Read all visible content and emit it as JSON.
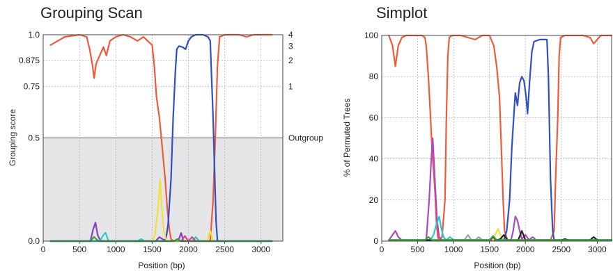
{
  "chart_data": [
    {
      "type": "line",
      "title": "Grouping Scan",
      "xlabel": "Position (bp)",
      "ylabel": "Grouping score",
      "xlim": [
        0,
        3300
      ],
      "ylim": [
        0,
        1.0
      ],
      "y_tick_values": [
        0.0,
        0.5,
        0.75,
        0.875,
        1.0
      ],
      "y_tick_labels": [
        "0.0",
        "0.5",
        "0.75",
        "0.875",
        "1.0"
      ],
      "x_ticks": [
        0,
        500,
        1000,
        1500,
        2000,
        2500,
        3000
      ],
      "right_labels": [
        {
          "text": "4",
          "y": 1.0
        },
        {
          "text": "3",
          "y": 0.945
        },
        {
          "text": "2",
          "y": 0.875
        },
        {
          "text": "1",
          "y": 0.75
        },
        {
          "text": "Outgroup",
          "y": 0.5
        }
      ],
      "shaded_below": 0.5,
      "series": [
        {
          "color": "#f05a3a",
          "points": [
            [
              100,
              0.95
            ],
            [
              200,
              0.97
            ],
            [
              300,
              0.99
            ],
            [
              400,
              0.995
            ],
            [
              500,
              1.0
            ],
            [
              600,
              0.99
            ],
            [
              640,
              0.93
            ],
            [
              680,
              0.85
            ],
            [
              700,
              0.79
            ],
            [
              730,
              0.86
            ],
            [
              780,
              0.9
            ],
            [
              830,
              0.94
            ],
            [
              870,
              0.9
            ],
            [
              920,
              0.97
            ],
            [
              1000,
              0.99
            ],
            [
              1100,
              1.0
            ],
            [
              1200,
              0.99
            ],
            [
              1300,
              0.97
            ],
            [
              1380,
              0.99
            ],
            [
              1440,
              0.97
            ],
            [
              1500,
              0.95
            ],
            [
              1530,
              0.85
            ],
            [
              1560,
              0.7
            ],
            [
              1600,
              0.6
            ],
            [
              1640,
              0.45
            ],
            [
              1680,
              0.3
            ],
            [
              1710,
              0.15
            ],
            [
              1740,
              0.05
            ],
            [
              1760,
              0.01
            ],
            [
              1800,
              0.0
            ],
            [
              2300,
              0.0
            ],
            [
              2340,
              0.2
            ],
            [
              2370,
              0.5
            ],
            [
              2400,
              0.85
            ],
            [
              2430,
              0.99
            ],
            [
              2500,
              1.0
            ],
            [
              2700,
              1.0
            ],
            [
              2800,
              0.99
            ],
            [
              2900,
              1.0
            ],
            [
              3000,
              1.0
            ],
            [
              3150,
              1.0
            ]
          ]
        },
        {
          "color": "#2f4fc8",
          "points": [
            [
              100,
              0.0
            ],
            [
              1650,
              0.0
            ],
            [
              1690,
              0.01
            ],
            [
              1720,
              0.08
            ],
            [
              1760,
              0.3
            ],
            [
              1790,
              0.6
            ],
            [
              1820,
              0.82
            ],
            [
              1840,
              0.93
            ],
            [
              1870,
              0.945
            ],
            [
              1920,
              0.94
            ],
            [
              1960,
              0.93
            ],
            [
              2000,
              0.97
            ],
            [
              2040,
              0.99
            ],
            [
              2100,
              1.0
            ],
            [
              2200,
              1.0
            ],
            [
              2270,
              0.99
            ],
            [
              2300,
              0.97
            ],
            [
              2340,
              0.6
            ],
            [
              2380,
              0.1
            ],
            [
              2400,
              0.0
            ],
            [
              3150,
              0.0
            ]
          ]
        },
        {
          "color": "#8a3cc8",
          "points": [
            [
              100,
              0.0
            ],
            [
              650,
              0.0
            ],
            [
              690,
              0.06
            ],
            [
              720,
              0.09
            ],
            [
              750,
              0.03
            ],
            [
              790,
              0.0
            ],
            [
              1550,
              0.0
            ],
            [
              1600,
              0.02
            ],
            [
              1640,
              0.01
            ],
            [
              1700,
              0.0
            ],
            [
              1860,
              0.0
            ],
            [
              1900,
              0.04
            ],
            [
              1930,
              0.0
            ],
            [
              3150,
              0.0
            ]
          ]
        },
        {
          "color": "#2ec8c8",
          "points": [
            [
              100,
              0.0
            ],
            [
              780,
              0.0
            ],
            [
              830,
              0.03
            ],
            [
              860,
              0.04
            ],
            [
              900,
              0.0
            ],
            [
              1300,
              0.0
            ],
            [
              1350,
              0.01
            ],
            [
              1400,
              0.0
            ],
            [
              2050,
              0.0
            ],
            [
              2100,
              0.02
            ],
            [
              2150,
              0.0
            ],
            [
              3150,
              0.0
            ]
          ]
        },
        {
          "color": "#f0e040",
          "points": [
            [
              1500,
              0.0
            ],
            [
              1540,
              0.03
            ],
            [
              1580,
              0.15
            ],
            [
              1610,
              0.3
            ],
            [
              1630,
              0.18
            ],
            [
              1660,
              0.05
            ],
            [
              1700,
              0.0
            ],
            [
              2260,
              0.0
            ],
            [
              2300,
              0.05
            ],
            [
              2340,
              0.0
            ]
          ]
        },
        {
          "color": "#3aa040",
          "points": [
            [
              100,
              0.0
            ],
            [
              650,
              0.0
            ],
            [
              700,
              0.02
            ],
            [
              760,
              0.0
            ],
            [
              1800,
              0.0
            ],
            [
              1850,
              0.01
            ],
            [
              1900,
              0.0
            ],
            [
              3150,
              0.0
            ]
          ]
        },
        {
          "color": "#c84a8a",
          "points": [
            [
              1900,
              0.0
            ],
            [
              1950,
              0.025
            ],
            [
              2000,
              0.0
            ],
            [
              2050,
              0.02
            ],
            [
              2100,
              0.0
            ]
          ]
        }
      ]
    },
    {
      "type": "line",
      "title": "Simplot",
      "xlabel": "Position (bp)",
      "ylabel": "% of Permuted Trees",
      "xlim": [
        0,
        3200
      ],
      "ylim": [
        0,
        100
      ],
      "y_ticks": [
        0,
        20,
        40,
        60,
        80,
        100
      ],
      "x_ticks": [
        0,
        500,
        1000,
        1500,
        2000,
        2500,
        3000
      ],
      "series": [
        {
          "color": "#f05a3a",
          "points": [
            [
              100,
              100
            ],
            [
              150,
              95
            ],
            [
              190,
              85
            ],
            [
              230,
              95
            ],
            [
              280,
              99
            ],
            [
              340,
              100
            ],
            [
              500,
              100
            ],
            [
              560,
              100
            ],
            [
              600,
              99
            ],
            [
              620,
              95
            ],
            [
              650,
              80
            ],
            [
              680,
              60
            ],
            [
              700,
              45
            ],
            [
              720,
              35
            ],
            [
              740,
              25
            ],
            [
              760,
              10
            ],
            [
              780,
              2
            ],
            [
              800,
              0.5
            ],
            [
              840,
              2
            ],
            [
              880,
              20
            ],
            [
              900,
              60
            ],
            [
              920,
              90
            ],
            [
              940,
              99
            ],
            [
              980,
              100
            ],
            [
              1100,
              100
            ],
            [
              1200,
              99
            ],
            [
              1300,
              98
            ],
            [
              1400,
              100
            ],
            [
              1500,
              100
            ],
            [
              1560,
              95
            ],
            [
              1600,
              85
            ],
            [
              1640,
              70
            ],
            [
              1660,
              50
            ],
            [
              1690,
              20
            ],
            [
              1710,
              5
            ],
            [
              1750,
              0.5
            ],
            [
              2350,
              0.5
            ],
            [
              2400,
              5
            ],
            [
              2420,
              30
            ],
            [
              2450,
              60
            ],
            [
              2470,
              90
            ],
            [
              2490,
              99
            ],
            [
              2550,
              100
            ],
            [
              2800,
              100
            ],
            [
              2900,
              99
            ],
            [
              2950,
              96
            ],
            [
              3000,
              98
            ],
            [
              3050,
              100
            ],
            [
              3200,
              100
            ]
          ]
        },
        {
          "color": "#2f4fc8",
          "points": [
            [
              1700,
              0.5
            ],
            [
              1740,
              5
            ],
            [
              1780,
              20
            ],
            [
              1810,
              45
            ],
            [
              1840,
              62
            ],
            [
              1860,
              72
            ],
            [
              1890,
              66
            ],
            [
              1920,
              77
            ],
            [
              1950,
              80
            ],
            [
              1980,
              78
            ],
            [
              2010,
              70
            ],
            [
              2030,
              62
            ],
            [
              2060,
              78
            ],
            [
              2090,
              92
            ],
            [
              2120,
              97
            ],
            [
              2200,
              98
            ],
            [
              2260,
              98
            ],
            [
              2300,
              98
            ],
            [
              2320,
              80
            ],
            [
              2350,
              30
            ],
            [
              2380,
              5
            ],
            [
              2400,
              0.5
            ],
            [
              3200,
              0.5
            ]
          ]
        },
        {
          "color": "#b048c0",
          "points": [
            [
              100,
              0.5
            ],
            [
              150,
              3
            ],
            [
              190,
              5
            ],
            [
              230,
              2
            ],
            [
              280,
              0.5
            ],
            [
              620,
              0.5
            ],
            [
              660,
              20
            ],
            [
              690,
              40
            ],
            [
              710,
              50
            ],
            [
              740,
              30
            ],
            [
              770,
              10
            ],
            [
              800,
              2
            ],
            [
              840,
              0.5
            ],
            [
              1800,
              0.5
            ],
            [
              1830,
              5
            ],
            [
              1860,
              12
            ],
            [
              1890,
              10
            ],
            [
              1920,
              5
            ],
            [
              1950,
              1
            ],
            [
              2000,
              3
            ],
            [
              2050,
              0.5
            ],
            [
              2100,
              2
            ],
            [
              2150,
              0.5
            ],
            [
              3200,
              0.5
            ]
          ]
        },
        {
          "color": "#2ec8c8",
          "points": [
            [
              100,
              0.5
            ],
            [
              680,
              0.5
            ],
            [
              720,
              3
            ],
            [
              760,
              8
            ],
            [
              800,
              12
            ],
            [
              830,
              6
            ],
            [
              860,
              2
            ],
            [
              900,
              0.5
            ],
            [
              950,
              2
            ],
            [
              1000,
              0.5
            ],
            [
              1500,
              0.5
            ],
            [
              1550,
              2
            ],
            [
              1600,
              0.5
            ],
            [
              3200,
              0.5
            ]
          ]
        },
        {
          "color": "#f0e040",
          "points": [
            [
              1550,
              0.5
            ],
            [
              1590,
              4
            ],
            [
              1620,
              6
            ],
            [
              1650,
              3
            ],
            [
              1690,
              0.5
            ]
          ]
        },
        {
          "color": "#a0a0a0",
          "points": [
            [
              1150,
              0.5
            ],
            [
              1200,
              3
            ],
            [
              1250,
              0.5
            ],
            [
              1300,
              0.5
            ],
            [
              1350,
              2
            ],
            [
              1400,
              0.5
            ]
          ]
        },
        {
          "color": "#222222",
          "points": [
            [
              100,
              0.5
            ],
            [
              1500,
              0.5
            ],
            [
              1550,
              2
            ],
            [
              1600,
              0.5
            ],
            [
              1650,
              1
            ],
            [
              1700,
              3
            ],
            [
              1750,
              0.5
            ],
            [
              1900,
              0.5
            ],
            [
              1950,
              5
            ],
            [
              2000,
              0.5
            ],
            [
              2500,
              0.5
            ],
            [
              2550,
              1
            ],
            [
              2600,
              0.5
            ],
            [
              2900,
              0.5
            ],
            [
              2950,
              2
            ],
            [
              3000,
              0.5
            ],
            [
              3200,
              0.5
            ]
          ]
        },
        {
          "color": "#3aa040",
          "points": [
            [
              100,
              0.5
            ],
            [
              600,
              0.5
            ],
            [
              650,
              2
            ],
            [
              700,
              0.5
            ],
            [
              1500,
              0.5
            ],
            [
              1550,
              2.5
            ],
            [
              1600,
              0.5
            ],
            [
              3200,
              0.5
            ]
          ]
        }
      ]
    }
  ]
}
